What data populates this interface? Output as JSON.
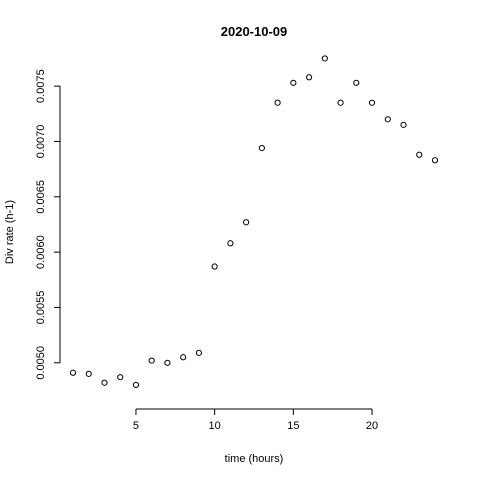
{
  "chart_data": {
    "type": "scatter",
    "title": "2020-10-09",
    "xlabel": "time (hours)",
    "ylabel": "Div rate (h-1)",
    "xlim": [
      1,
      24
    ],
    "ylim": [
      0.0047,
      0.0077
    ],
    "x_ticks": [
      5,
      10,
      15,
      20
    ],
    "y_ticks": [
      0.005,
      0.0055,
      0.006,
      0.0065,
      0.007,
      0.0075
    ],
    "x_tick_labels": [
      "5",
      "10",
      "15",
      "20"
    ],
    "y_tick_labels": [
      "0.0050",
      "0.0055",
      "0.0060",
      "0.0065",
      "0.0070",
      "0.0075"
    ],
    "points": [
      {
        "x": 1,
        "y": 0.00491
      },
      {
        "x": 2,
        "y": 0.0049
      },
      {
        "x": 3,
        "y": 0.00482
      },
      {
        "x": 4,
        "y": 0.00487
      },
      {
        "x": 5,
        "y": 0.0048
      },
      {
        "x": 6,
        "y": 0.00502
      },
      {
        "x": 7,
        "y": 0.005
      },
      {
        "x": 8,
        "y": 0.00505
      },
      {
        "x": 9,
        "y": 0.00509
      },
      {
        "x": 10,
        "y": 0.00587
      },
      {
        "x": 11,
        "y": 0.00608
      },
      {
        "x": 12,
        "y": 0.00627
      },
      {
        "x": 13,
        "y": 0.00694
      },
      {
        "x": 14,
        "y": 0.00735
      },
      {
        "x": 15,
        "y": 0.00753
      },
      {
        "x": 16,
        "y": 0.00758
      },
      {
        "x": 17,
        "y": 0.00775
      },
      {
        "x": 18,
        "y": 0.00735
      },
      {
        "x": 19,
        "y": 0.00753
      },
      {
        "x": 20,
        "y": 0.00735
      },
      {
        "x": 21,
        "y": 0.0072
      },
      {
        "x": 22,
        "y": 0.00715
      },
      {
        "x": 23,
        "y": 0.00688
      },
      {
        "x": 24,
        "y": 0.00683
      }
    ]
  }
}
